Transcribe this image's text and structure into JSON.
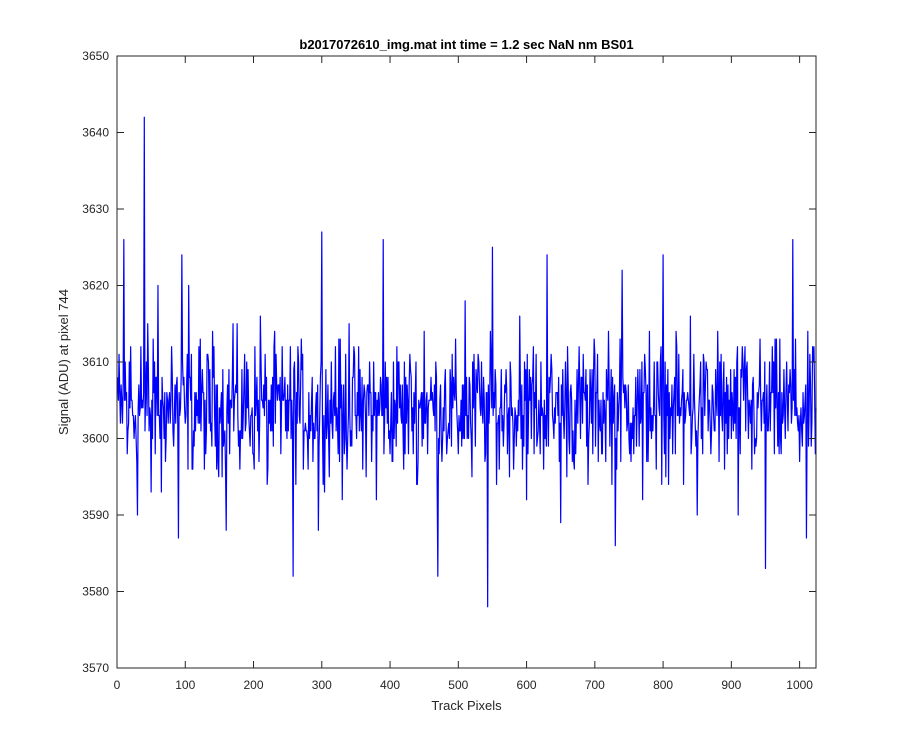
{
  "chart_data": {
    "type": "line",
    "title": "b2017072610_img.mat int time = 1.2 sec  NaN nm BS01",
    "xlabel": "Track Pixels",
    "ylabel": "Signal (ADU) at pixel 744",
    "xlim": [
      0,
      1024
    ],
    "ylim": [
      3570,
      3650
    ],
    "xticks": [
      0,
      100,
      200,
      300,
      400,
      500,
      600,
      700,
      800,
      900,
      1000
    ],
    "yticks": [
      3570,
      3580,
      3590,
      3600,
      3610,
      3620,
      3630,
      3640,
      3650
    ],
    "grid": false,
    "line_color": "#0000ff",
    "series_summary": {
      "n_points": 1024,
      "x_start": 1,
      "x_step": 1,
      "approx_mean": 3604,
      "approx_range": [
        3578,
        3642
      ]
    },
    "series": [
      {
        "x": [
          1,
          5,
          10,
          12,
          15,
          20,
          25,
          30,
          35,
          40,
          41,
          45,
          50,
          55,
          60,
          65,
          70,
          80,
          90,
          95,
          100,
          105,
          110,
          120,
          130,
          140,
          150,
          160,
          170,
          180,
          190,
          200,
          210,
          220,
          230,
          240,
          250,
          258,
          265,
          280,
          295,
          300,
          310,
          320,
          330,
          340,
          350,
          360,
          370,
          380,
          390,
          400,
          410,
          420,
          430,
          440,
          450,
          470,
          480,
          500,
          510,
          520,
          530,
          543,
          550,
          560,
          570,
          580,
          590,
          600,
          610,
          620,
          630,
          640,
          650,
          660,
          670,
          680,
          690,
          700,
          710,
          720,
          730,
          740,
          750,
          760,
          770,
          780,
          790,
          800,
          810,
          820,
          830,
          840,
          850,
          860,
          870,
          880,
          890,
          900,
          910,
          920,
          930,
          940,
          950,
          960,
          970,
          980,
          990,
          1000,
          1010,
          1020,
          1024
        ],
        "y": [
          3608,
          3602,
          3626,
          3610,
          3598,
          3612,
          3600,
          3590,
          3612,
          3642,
          3601,
          3615,
          3593,
          3610,
          3620,
          3593,
          3606,
          3612,
          3587,
          3624,
          3602,
          3620,
          3596,
          3612,
          3598,
          3614,
          3604,
          3588,
          3615,
          3596,
          3610,
          3598,
          3616,
          3594,
          3612,
          3598,
          3607,
          3582,
          3612,
          3596,
          3588,
          3627,
          3600,
          3612,
          3592,
          3615,
          3603,
          3596,
          3610,
          3592,
          3626,
          3598,
          3612,
          3596,
          3609,
          3594,
          3614,
          3582,
          3607,
          3598,
          3618,
          3595,
          3610,
          3578,
          3625,
          3596,
          3609,
          3602,
          3616,
          3592,
          3612,
          3598,
          3624,
          3600,
          3589,
          3612,
          3596,
          3608,
          3594,
          3611,
          3598,
          3614,
          3586,
          3622,
          3600,
          3608,
          3592,
          3614,
          3596,
          3624,
          3600,
          3612,
          3594,
          3616,
          3590,
          3610,
          3598,
          3614,
          3596,
          3600,
          3590,
          3612,
          3596,
          3606,
          3583,
          3612,
          3598,
          3606,
          3626,
          3597,
          3587,
          3610,
          3604
        ]
      }
    ]
  }
}
